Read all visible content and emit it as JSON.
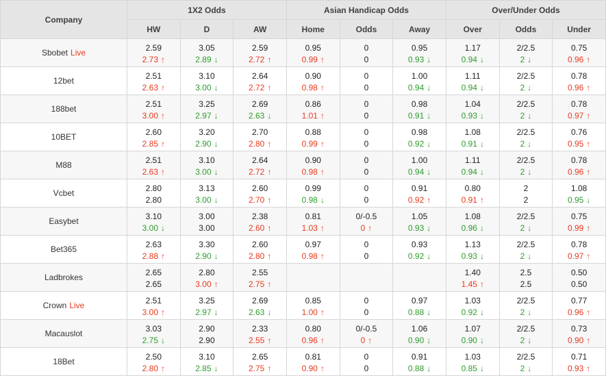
{
  "labels": {
    "live": "Live"
  },
  "arrows": {
    "up": "↑",
    "down": "↓"
  },
  "colors": {
    "up_red": "#e8391d",
    "down_green": "#2e9b2e",
    "header_bg": "#e5e5e5",
    "row_alt_bg": "#f7f7f7",
    "border": "#d6d6d6"
  },
  "header": {
    "company": "Company",
    "groups": [
      {
        "label": "1X2 Odds"
      },
      {
        "label": "Asian Handicap Odds"
      },
      {
        "label": "Over/Under Odds"
      }
    ],
    "sub": [
      "HW",
      "D",
      "AW",
      "Home",
      "Odds",
      "Away",
      "Over",
      "Odds",
      "Under"
    ]
  },
  "rows": [
    {
      "company": "Sbobet",
      "live": true,
      "cells": [
        [
          "2.59",
          "2.73",
          "up"
        ],
        [
          "3.05",
          "2.89",
          "down"
        ],
        [
          "2.59",
          "2.72",
          "up"
        ],
        [
          "0.95",
          "0.99",
          "up"
        ],
        [
          "0",
          "0",
          "none"
        ],
        [
          "0.95",
          "0.93",
          "down"
        ],
        [
          "1.17",
          "0.94",
          "down"
        ],
        [
          "2/2.5",
          "2",
          "down"
        ],
        [
          "0.75",
          "0.96",
          "up"
        ]
      ]
    },
    {
      "company": "12bet",
      "live": false,
      "cells": [
        [
          "2.51",
          "2.63",
          "up"
        ],
        [
          "3.10",
          "3.00",
          "down"
        ],
        [
          "2.64",
          "2.72",
          "up"
        ],
        [
          "0.90",
          "0.98",
          "up"
        ],
        [
          "0",
          "0",
          "none"
        ],
        [
          "1.00",
          "0.94",
          "down"
        ],
        [
          "1.11",
          "0.94",
          "down"
        ],
        [
          "2/2.5",
          "2",
          "down"
        ],
        [
          "0.78",
          "0.96",
          "up"
        ]
      ]
    },
    {
      "company": "188bet",
      "live": false,
      "cells": [
        [
          "2.51",
          "3.00",
          "up"
        ],
        [
          "3.25",
          "2.97",
          "down"
        ],
        [
          "2.69",
          "2.63",
          "down"
        ],
        [
          "0.86",
          "1.01",
          "up"
        ],
        [
          "0",
          "0",
          "none"
        ],
        [
          "0.98",
          "0.91",
          "down"
        ],
        [
          "1.04",
          "0.93",
          "down"
        ],
        [
          "2/2.5",
          "2",
          "down"
        ],
        [
          "0.78",
          "0.97",
          "up"
        ]
      ]
    },
    {
      "company": "10BET",
      "live": false,
      "cells": [
        [
          "2.60",
          "2.85",
          "up"
        ],
        [
          "3.20",
          "2.90",
          "down"
        ],
        [
          "2.70",
          "2.80",
          "up"
        ],
        [
          "0.88",
          "0.99",
          "up"
        ],
        [
          "0",
          "0",
          "none"
        ],
        [
          "0.98",
          "0.92",
          "down"
        ],
        [
          "1.08",
          "0.91",
          "down"
        ],
        [
          "2/2.5",
          "2",
          "down"
        ],
        [
          "0.76",
          "0.95",
          "up"
        ]
      ]
    },
    {
      "company": "M88",
      "live": false,
      "cells": [
        [
          "2.51",
          "2.63",
          "up"
        ],
        [
          "3.10",
          "3.00",
          "down"
        ],
        [
          "2.64",
          "2.72",
          "up"
        ],
        [
          "0.90",
          "0.98",
          "up"
        ],
        [
          "0",
          "0",
          "none"
        ],
        [
          "1.00",
          "0.94",
          "down"
        ],
        [
          "1.11",
          "0.94",
          "down"
        ],
        [
          "2/2.5",
          "2",
          "down"
        ],
        [
          "0.78",
          "0.96",
          "up"
        ]
      ]
    },
    {
      "company": "Vcbet",
      "live": false,
      "cells": [
        [
          "2.80",
          "2.80",
          "none"
        ],
        [
          "3.13",
          "3.00",
          "down"
        ],
        [
          "2.60",
          "2.70",
          "up"
        ],
        [
          "0.99",
          "0.98",
          "down"
        ],
        [
          "0",
          "0",
          "none"
        ],
        [
          "0.91",
          "0.92",
          "up"
        ],
        [
          "0.80",
          "0.91",
          "up"
        ],
        [
          "2",
          "2",
          "none"
        ],
        [
          "1.08",
          "0.95",
          "down"
        ]
      ]
    },
    {
      "company": "Easybet",
      "live": false,
      "cells": [
        [
          "3.10",
          "3.00",
          "down"
        ],
        [
          "3.00",
          "3.00",
          "none"
        ],
        [
          "2.38",
          "2.60",
          "up"
        ],
        [
          "0.81",
          "1.03",
          "up"
        ],
        [
          "0/-0.5",
          "0",
          "up"
        ],
        [
          "1.05",
          "0.93",
          "down"
        ],
        [
          "1.08",
          "0.96",
          "down"
        ],
        [
          "2/2.5",
          "2",
          "down"
        ],
        [
          "0.75",
          "0.99",
          "up"
        ]
      ]
    },
    {
      "company": "Bet365",
      "live": false,
      "cells": [
        [
          "2.63",
          "2.88",
          "up"
        ],
        [
          "3.30",
          "2.90",
          "down"
        ],
        [
          "2.60",
          "2.80",
          "up"
        ],
        [
          "0.97",
          "0.98",
          "up"
        ],
        [
          "0",
          "0",
          "none"
        ],
        [
          "0.93",
          "0.92",
          "down"
        ],
        [
          "1.13",
          "0.93",
          "down"
        ],
        [
          "2/2.5",
          "2",
          "down"
        ],
        [
          "0.78",
          "0.97",
          "up"
        ]
      ]
    },
    {
      "company": "Ladbrokes",
      "live": false,
      "cells": [
        [
          "2.65",
          "2.65",
          "none"
        ],
        [
          "2.80",
          "3.00",
          "up"
        ],
        [
          "2.55",
          "2.75",
          "up"
        ],
        [
          "",
          "",
          "none"
        ],
        [
          "",
          "",
          "none"
        ],
        [
          "",
          "",
          "none"
        ],
        [
          "1.40",
          "1.45",
          "up"
        ],
        [
          "2.5",
          "2.5",
          "none"
        ],
        [
          "0.50",
          "0.50",
          "none"
        ]
      ]
    },
    {
      "company": "Crown",
      "live": true,
      "cells": [
        [
          "2.51",
          "3.00",
          "up"
        ],
        [
          "3.25",
          "2.97",
          "down"
        ],
        [
          "2.69",
          "2.63",
          "down"
        ],
        [
          "0.85",
          "1.00",
          "up"
        ],
        [
          "0",
          "0",
          "none"
        ],
        [
          "0.97",
          "0.88",
          "down"
        ],
        [
          "1.03",
          "0.92",
          "down"
        ],
        [
          "2/2.5",
          "2",
          "down"
        ],
        [
          "0.77",
          "0.96",
          "up"
        ]
      ]
    },
    {
      "company": "Macauslot",
      "live": false,
      "cells": [
        [
          "3.03",
          "2.75",
          "down"
        ],
        [
          "2.90",
          "2.90",
          "none"
        ],
        [
          "2.33",
          "2.55",
          "up"
        ],
        [
          "0.80",
          "0.96",
          "up"
        ],
        [
          "0/-0.5",
          "0",
          "up"
        ],
        [
          "1.06",
          "0.90",
          "down"
        ],
        [
          "1.07",
          "0.90",
          "down"
        ],
        [
          "2/2.5",
          "2",
          "down"
        ],
        [
          "0.73",
          "0.90",
          "up"
        ]
      ]
    },
    {
      "company": "18Bet",
      "live": false,
      "cells": [
        [
          "2.50",
          "2.80",
          "up"
        ],
        [
          "3.10",
          "2.85",
          "down"
        ],
        [
          "2.65",
          "2.75",
          "up"
        ],
        [
          "0.81",
          "0.90",
          "up"
        ],
        [
          "0",
          "0",
          "none"
        ],
        [
          "0.91",
          "0.88",
          "down"
        ],
        [
          "1.03",
          "0.85",
          "down"
        ],
        [
          "2/2.5",
          "2",
          "down"
        ],
        [
          "0.71",
          "0.93",
          "up"
        ]
      ]
    }
  ]
}
